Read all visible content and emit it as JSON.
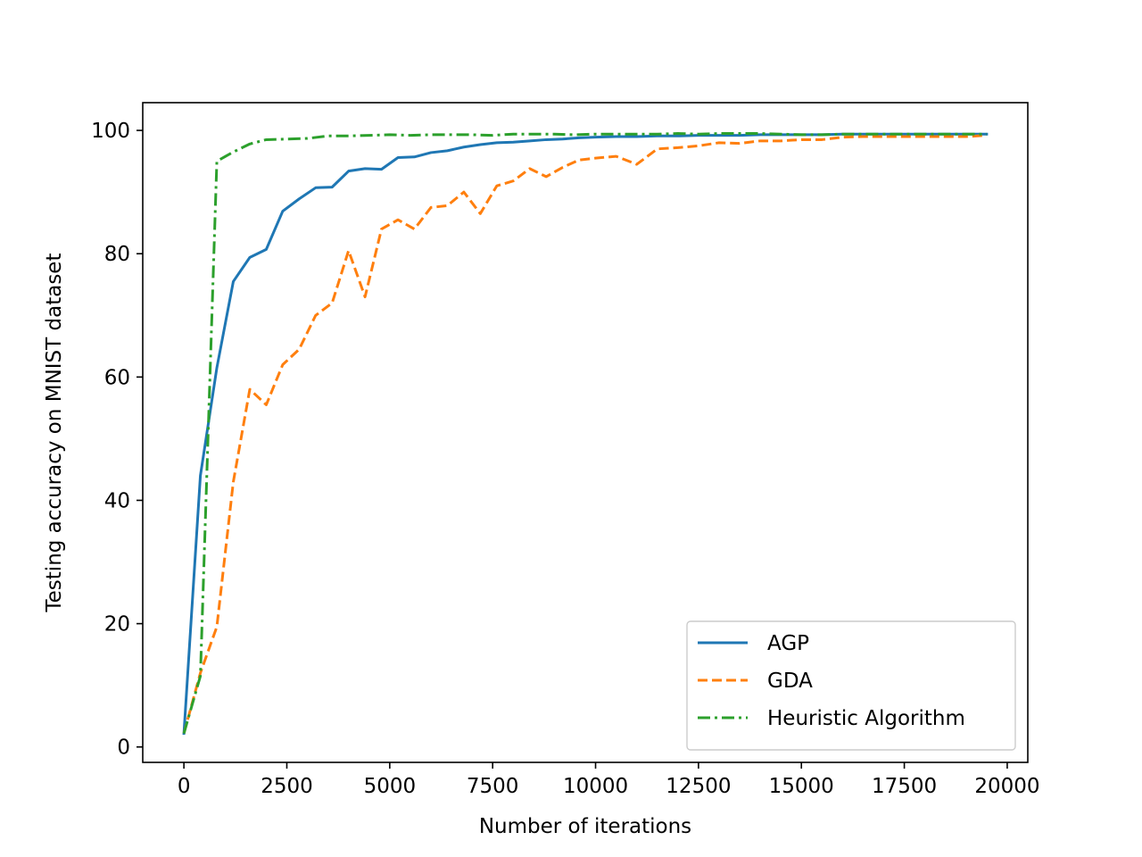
{
  "chart_data": {
    "type": "line",
    "title": "",
    "xlabel": "Number of iterations",
    "ylabel": "Testing accuracy on MNIST dataset",
    "xlim": [
      -1000,
      20500
    ],
    "ylim": [
      -2.5,
      104.5
    ],
    "xticks": [
      0,
      2500,
      5000,
      7500,
      10000,
      12500,
      15000,
      17500,
      20000
    ],
    "yticks": [
      0,
      20,
      40,
      60,
      80,
      100
    ],
    "grid": false,
    "legend_position": "lower-right",
    "series": [
      {
        "name": "AGP",
        "color": "#1f77b4",
        "dash": "solid",
        "x": [
          0,
          400,
          800,
          1200,
          1600,
          2000,
          2400,
          2800,
          3200,
          3600,
          4000,
          4400,
          4800,
          5200,
          5600,
          6000,
          6400,
          6800,
          7200,
          7600,
          8000,
          8400,
          8800,
          9200,
          9600,
          10000,
          10500,
          11000,
          11500,
          12000,
          12500,
          13000,
          13500,
          14000,
          14500,
          15000,
          15500,
          16000,
          16500,
          17000,
          17500,
          18000,
          18500,
          19000,
          19500
        ],
        "y": [
          2.2,
          44.0,
          61.5,
          75.5,
          79.4,
          80.7,
          86.9,
          88.9,
          90.7,
          90.8,
          93.4,
          93.8,
          93.7,
          95.6,
          95.7,
          96.4,
          96.7,
          97.3,
          97.7,
          98.0,
          98.1,
          98.3,
          98.5,
          98.6,
          98.8,
          98.9,
          99.0,
          99.0,
          99.1,
          99.1,
          99.2,
          99.2,
          99.2,
          99.3,
          99.3,
          99.3,
          99.3,
          99.4,
          99.4,
          99.4,
          99.4,
          99.4,
          99.4,
          99.4,
          99.4
        ]
      },
      {
        "name": "GDA",
        "color": "#ff7f0e",
        "dash": "dashed",
        "x": [
          0,
          400,
          800,
          1200,
          1600,
          2000,
          2400,
          2800,
          3200,
          3600,
          4000,
          4400,
          4800,
          5200,
          5600,
          6000,
          6400,
          6800,
          7200,
          7600,
          8000,
          8400,
          8800,
          9200,
          9600,
          10000,
          10500,
          11000,
          11500,
          12000,
          12500,
          13000,
          13500,
          14000,
          14500,
          15000,
          15500,
          16000,
          16500,
          17000,
          17500,
          18000,
          18500,
          19000,
          19500
        ],
        "y": [
          2.2,
          12.0,
          19.5,
          43.0,
          58.0,
          55.5,
          62.0,
          64.5,
          70.0,
          72.0,
          80.5,
          73.0,
          84.0,
          85.5,
          84.0,
          87.5,
          87.8,
          90.0,
          86.5,
          91.0,
          91.8,
          93.8,
          92.5,
          94.0,
          95.2,
          95.5,
          95.8,
          94.5,
          97.0,
          97.2,
          97.5,
          98.0,
          97.9,
          98.3,
          98.3,
          98.5,
          98.5,
          98.9,
          99.0,
          99.0,
          99.0,
          99.0,
          99.0,
          99.0,
          99.2
        ]
      },
      {
        "name": "Heuristic Algorithm",
        "color": "#2ca02c",
        "dash": "dashdot",
        "x": [
          0,
          400,
          800,
          1200,
          1600,
          2000,
          2500,
          3000,
          3500,
          4000,
          4500,
          5000,
          5500,
          6000,
          6500,
          7000,
          7500,
          8000,
          8500,
          9000,
          9500,
          10000,
          10500,
          11000,
          11500,
          12000,
          12500,
          13000,
          13500,
          14000,
          14500,
          15000,
          15500,
          16000,
          16500,
          17000,
          17500,
          18000,
          18500,
          19000,
          19500
        ],
        "y": [
          2.2,
          11.5,
          95.0,
          96.5,
          97.8,
          98.5,
          98.6,
          98.7,
          99.1,
          99.1,
          99.2,
          99.3,
          99.2,
          99.3,
          99.3,
          99.3,
          99.2,
          99.4,
          99.4,
          99.4,
          99.3,
          99.4,
          99.4,
          99.4,
          99.4,
          99.5,
          99.4,
          99.5,
          99.5,
          99.5,
          99.4,
          99.3,
          99.3,
          99.4,
          99.4,
          99.4,
          99.4,
          99.4,
          99.4,
          99.4,
          99.4
        ]
      }
    ]
  }
}
